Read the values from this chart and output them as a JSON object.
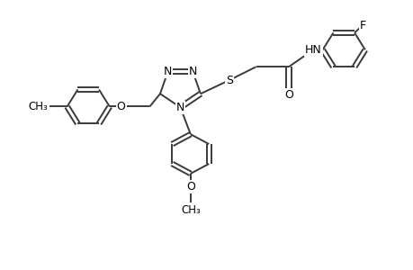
{
  "background_color": "#ffffff",
  "line_color": "#3a3a3a",
  "line_width": 1.4,
  "font_size": 9,
  "figsize": [
    4.6,
    3.0
  ],
  "dpi": 100,
  "xlim": [
    0,
    10
  ],
  "ylim": [
    0,
    7
  ]
}
